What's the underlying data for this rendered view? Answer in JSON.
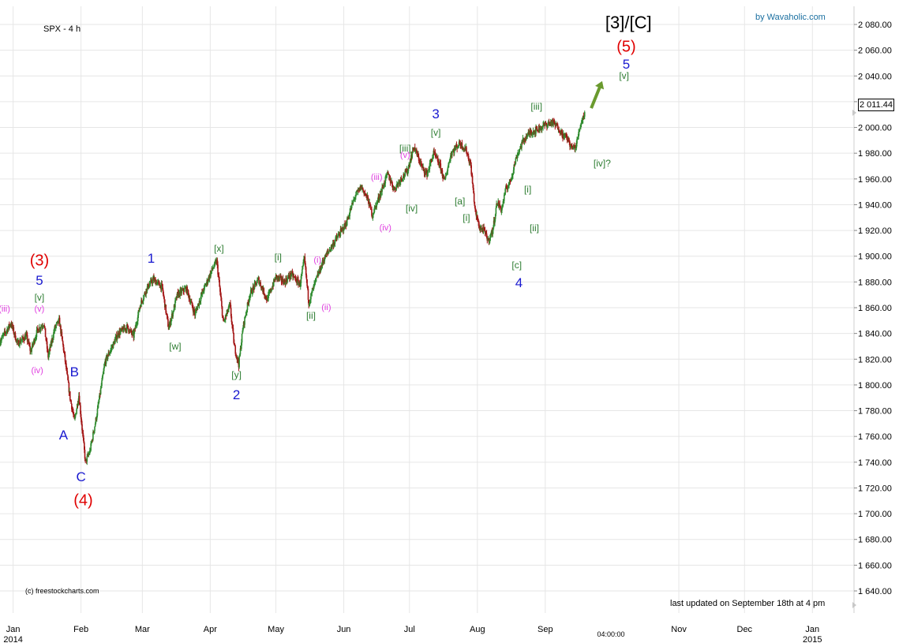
{
  "header": {
    "symbol": "SPX - 4 h",
    "credit": "by Wavaholic.com",
    "copyright": "(c) freestockcharts.com",
    "last_updated": "last updated on September 18th at 4 pm",
    "last_price": "2 011.44"
  },
  "chart_data": {
    "type": "candlestick",
    "ylim": [
      1630,
      2090
    ],
    "yticks": [
      1640,
      1660,
      1680,
      1700,
      1720,
      1740,
      1760,
      1780,
      1800,
      1820,
      1840,
      1860,
      1880,
      1900,
      1920,
      1940,
      1960,
      1980,
      2000,
      2020,
      2040,
      2060,
      2080
    ],
    "ytick_labels": [
      "1 640.00",
      "1 660.00",
      "1 680.00",
      "1 700.00",
      "1 720.00",
      "1 740.00",
      "1 760.00",
      "1 780.00",
      "1 800.00",
      "1 820.00",
      "1 840.00",
      "1 860.00",
      "1 880.00",
      "1 900.00",
      "1 920.00",
      "1 940.00",
      "1 960.00",
      "1 980.00",
      "2 000.00",
      "2 020.00",
      "2 040.00",
      "2 060.00",
      "2 080.00"
    ],
    "xlim": [
      "2013-12-26",
      "2015-01-20"
    ],
    "xticks": [
      {
        "date": "2014-01-01",
        "label": "Jan",
        "sub": "2014"
      },
      {
        "date": "2014-02-01",
        "label": "Feb",
        "sub": ""
      },
      {
        "date": "2014-03-01",
        "label": "Mar",
        "sub": ""
      },
      {
        "date": "2014-04-01",
        "label": "Apr",
        "sub": ""
      },
      {
        "date": "2014-05-01",
        "label": "May",
        "sub": ""
      },
      {
        "date": "2014-06-01",
        "label": "Jun",
        "sub": ""
      },
      {
        "date": "2014-07-01",
        "label": "Jul",
        "sub": ""
      },
      {
        "date": "2014-08-01",
        "label": "Aug",
        "sub": ""
      },
      {
        "date": "2014-09-01",
        "label": "Sep",
        "sub": ""
      },
      {
        "date": "2014-11-01",
        "label": "Nov",
        "sub": ""
      },
      {
        "date": "2014-12-01",
        "label": "Dec",
        "sub": ""
      },
      {
        "date": "2015-01-01",
        "label": "Jan",
        "sub": "2015"
      }
    ],
    "time_label": {
      "date": "2014-10-01",
      "text": "04:00:00"
    },
    "price_path": [
      [
        "2013-12-26",
        1834
      ],
      [
        "2013-12-31",
        1848
      ],
      [
        "2014-01-03",
        1832
      ],
      [
        "2014-01-07",
        1838
      ],
      [
        "2014-01-09",
        1826
      ],
      [
        "2014-01-12",
        1842
      ],
      [
        "2014-01-15",
        1848
      ],
      [
        "2014-01-17",
        1822
      ],
      [
        "2014-01-20",
        1844
      ],
      [
        "2014-01-22",
        1850
      ],
      [
        "2014-01-24",
        1828
      ],
      [
        "2014-01-27",
        1790
      ],
      [
        "2014-01-29",
        1772
      ],
      [
        "2014-01-31",
        1792
      ],
      [
        "2014-02-03",
        1740
      ],
      [
        "2014-02-05",
        1748
      ],
      [
        "2014-02-08",
        1775
      ],
      [
        "2014-02-12",
        1818
      ],
      [
        "2014-02-18",
        1840
      ],
      [
        "2014-02-22",
        1845
      ],
      [
        "2014-02-25",
        1838
      ],
      [
        "2014-02-28",
        1862
      ],
      [
        "2014-03-03",
        1875
      ],
      [
        "2014-03-06",
        1882
      ],
      [
        "2014-03-10",
        1876
      ],
      [
        "2014-03-13",
        1844
      ],
      [
        "2014-03-17",
        1870
      ],
      [
        "2014-03-21",
        1875
      ],
      [
        "2014-03-25",
        1855
      ],
      [
        "2014-03-28",
        1870
      ],
      [
        "2014-04-02",
        1890
      ],
      [
        "2014-04-04",
        1896
      ],
      [
        "2014-04-07",
        1848
      ],
      [
        "2014-04-10",
        1862
      ],
      [
        "2014-04-12",
        1830
      ],
      [
        "2014-04-14",
        1816
      ],
      [
        "2014-04-16",
        1845
      ],
      [
        "2014-04-19",
        1870
      ],
      [
        "2014-04-23",
        1882
      ],
      [
        "2014-04-27",
        1866
      ],
      [
        "2014-05-01",
        1884
      ],
      [
        "2014-05-05",
        1880
      ],
      [
        "2014-05-08",
        1886
      ],
      [
        "2014-05-12",
        1878
      ],
      [
        "2014-05-14",
        1898
      ],
      [
        "2014-05-16",
        1864
      ],
      [
        "2014-05-19",
        1880
      ],
      [
        "2014-05-23",
        1898
      ],
      [
        "2014-05-28",
        1912
      ],
      [
        "2014-06-02",
        1925
      ],
      [
        "2014-06-06",
        1946
      ],
      [
        "2014-06-09",
        1954
      ],
      [
        "2014-06-12",
        1944
      ],
      [
        "2014-06-14",
        1932
      ],
      [
        "2014-06-18",
        1950
      ],
      [
        "2014-06-21",
        1964
      ],
      [
        "2014-06-24",
        1952
      ],
      [
        "2014-06-27",
        1960
      ],
      [
        "2014-06-30",
        1966
      ],
      [
        "2014-07-03",
        1985
      ],
      [
        "2014-07-07",
        1968
      ],
      [
        "2014-07-09",
        1964
      ],
      [
        "2014-07-12",
        1980
      ],
      [
        "2014-07-15",
        1970
      ],
      [
        "2014-07-17",
        1958
      ],
      [
        "2014-07-20",
        1980
      ],
      [
        "2014-07-24",
        1988
      ],
      [
        "2014-07-27",
        1982
      ],
      [
        "2014-07-29",
        1970
      ],
      [
        "2014-07-31",
        1935
      ],
      [
        "2014-08-02",
        1922
      ],
      [
        "2014-08-04",
        1920
      ],
      [
        "2014-08-06",
        1912
      ],
      [
        "2014-08-08",
        1920
      ],
      [
        "2014-08-10",
        1942
      ],
      [
        "2014-08-12",
        1936
      ],
      [
        "2014-08-14",
        1952
      ],
      [
        "2014-08-16",
        1958
      ],
      [
        "2014-08-19",
        1978
      ],
      [
        "2014-08-22",
        1990
      ],
      [
        "2014-08-25",
        1996
      ],
      [
        "2014-08-28",
        1998
      ],
      [
        "2014-09-01",
        2002
      ],
      [
        "2014-09-04",
        2004
      ],
      [
        "2014-09-07",
        2000
      ],
      [
        "2014-09-09",
        1994
      ],
      [
        "2014-09-11",
        1992
      ],
      [
        "2014-09-13",
        1984
      ],
      [
        "2014-09-15",
        1985
      ],
      [
        "2014-09-17",
        2002
      ],
      [
        "2014-09-19",
        2011.44
      ]
    ],
    "annotations": [
      {
        "text": "[3]/[C]",
        "date": "2014-10-09",
        "price": 2081,
        "color": "#000000",
        "size": 22
      },
      {
        "text": "(5)",
        "date": "2014-10-08",
        "price": 2062,
        "color": "#e00000",
        "size": 20
      },
      {
        "text": "5",
        "date": "2014-10-08",
        "price": 2049,
        "color": "#1a1ad0",
        "size": 17
      },
      {
        "text": "[v]",
        "date": "2014-10-07",
        "price": 2040,
        "color": "#2e7d32",
        "size": 12
      },
      {
        "text": "[iii]",
        "date": "2014-08-28",
        "price": 2016,
        "color": "#2e7d32",
        "size": 12
      },
      {
        "text": "[iv]?",
        "date": "2014-09-27",
        "price": 1972,
        "color": "#2e7d32",
        "size": 12
      },
      {
        "text": "(3)",
        "date": "2014-01-13",
        "price": 1896,
        "color": "#e00000",
        "size": 20
      },
      {
        "text": "5",
        "date": "2014-01-13",
        "price": 1881,
        "color": "#1a1ad0",
        "size": 17
      },
      {
        "text": "[v]",
        "date": "2014-01-13",
        "price": 1868,
        "color": "#2e7d32",
        "size": 12
      },
      {
        "text": "(v)",
        "date": "2014-01-13",
        "price": 1859,
        "color": "#e040e0",
        "size": 11
      },
      {
        "text": "(iii)",
        "date": "2013-12-28",
        "price": 1859,
        "color": "#e040e0",
        "size": 11
      },
      {
        "text": "(iv)",
        "date": "2014-01-12",
        "price": 1811,
        "color": "#e040e0",
        "size": 11
      },
      {
        "text": "B",
        "date": "2014-01-29",
        "price": 1810,
        "color": "#1a1ad0",
        "size": 17
      },
      {
        "text": "A",
        "date": "2014-01-24",
        "price": 1761,
        "color": "#1a1ad0",
        "size": 17
      },
      {
        "text": "C",
        "date": "2014-02-01",
        "price": 1728,
        "color": "#1a1ad0",
        "size": 17
      },
      {
        "text": "(4)",
        "date": "2014-02-02",
        "price": 1710,
        "color": "#e00000",
        "size": 20
      },
      {
        "text": "1",
        "date": "2014-03-05",
        "price": 1898,
        "color": "#1a1ad0",
        "size": 17
      },
      {
        "text": "[w]",
        "date": "2014-03-16",
        "price": 1830,
        "color": "#2e7d32",
        "size": 12
      },
      {
        "text": "[x]",
        "date": "2014-04-05",
        "price": 1906,
        "color": "#2e7d32",
        "size": 12
      },
      {
        "text": "[y]",
        "date": "2014-04-13",
        "price": 1808,
        "color": "#2e7d32",
        "size": 12
      },
      {
        "text": "2",
        "date": "2014-04-13",
        "price": 1792,
        "color": "#1a1ad0",
        "size": 17
      },
      {
        "text": "[i]",
        "date": "2014-05-02",
        "price": 1899,
        "color": "#2e7d32",
        "size": 12
      },
      {
        "text": "(i)",
        "date": "2014-05-20",
        "price": 1897,
        "color": "#e040e0",
        "size": 11
      },
      {
        "text": "[ii]",
        "date": "2014-05-17",
        "price": 1854,
        "color": "#2e7d32",
        "size": 12
      },
      {
        "text": "(ii)",
        "date": "2014-05-24",
        "price": 1860,
        "color": "#e040e0",
        "size": 11
      },
      {
        "text": "(iii)",
        "date": "2014-06-16",
        "price": 1961,
        "color": "#e040e0",
        "size": 11
      },
      {
        "text": "(iv)",
        "date": "2014-06-20",
        "price": 1922,
        "color": "#e040e0",
        "size": 11
      },
      {
        "text": "[iii]",
        "date": "2014-06-29",
        "price": 1984,
        "color": "#2e7d32",
        "size": 12
      },
      {
        "text": "(v)",
        "date": "2014-06-29",
        "price": 1978,
        "color": "#e040e0",
        "size": 11
      },
      {
        "text": "[iv]",
        "date": "2014-07-02",
        "price": 1937,
        "color": "#2e7d32",
        "size": 12
      },
      {
        "text": "3",
        "date": "2014-07-13",
        "price": 2010,
        "color": "#1a1ad0",
        "size": 17
      },
      {
        "text": "[v]",
        "date": "2014-07-13",
        "price": 1996,
        "color": "#2e7d32",
        "size": 12
      },
      {
        "text": "[a]",
        "date": "2014-07-24",
        "price": 1943,
        "color": "#2e7d32",
        "size": 12
      },
      {
        "text": "[i]",
        "date": "2014-07-27",
        "price": 1930,
        "color": "#2e7d32",
        "size": 12
      },
      {
        "text": "[i]",
        "date": "2014-08-24",
        "price": 1952,
        "color": "#2e7d32",
        "size": 12
      },
      {
        "text": "[ii]",
        "date": "2014-08-27",
        "price": 1922,
        "color": "#2e7d32",
        "size": 12
      },
      {
        "text": "[c]",
        "date": "2014-08-19",
        "price": 1893,
        "color": "#2e7d32",
        "size": 12
      },
      {
        "text": "4",
        "date": "2014-08-20",
        "price": 1879,
        "color": "#1a1ad0",
        "size": 17
      }
    ],
    "arrow": {
      "from": [
        "2014-09-22",
        2015
      ],
      "to": [
        "2014-09-27",
        2036
      ],
      "color": "#6a9a2e"
    }
  }
}
